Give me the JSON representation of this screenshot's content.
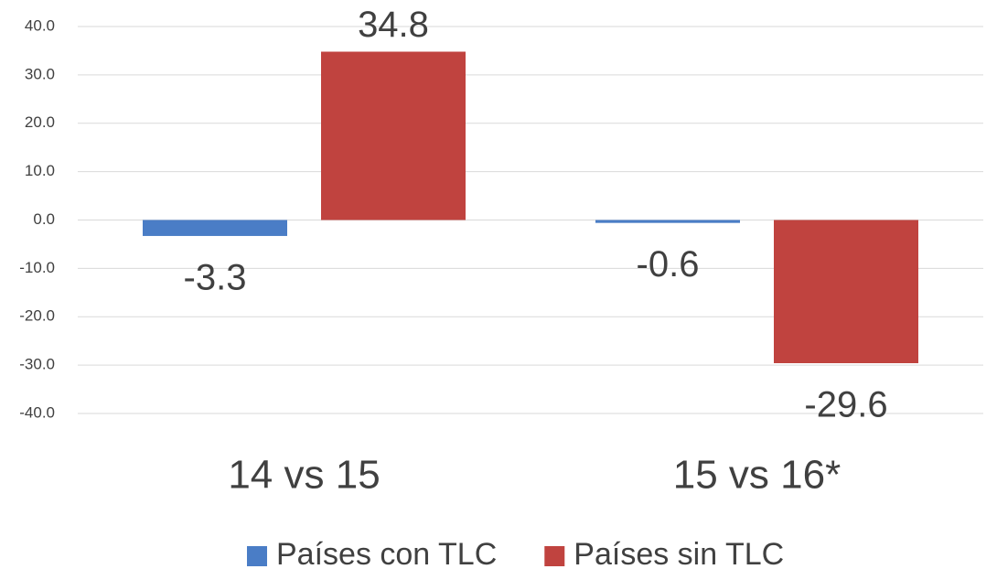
{
  "chart_data": {
    "type": "bar",
    "categories": [
      "14 vs 15",
      "15 vs 16*"
    ],
    "series": [
      {
        "name": "Países con TLC",
        "color": "#4a7dc6",
        "values": [
          -3.3,
          -0.6
        ]
      },
      {
        "name": "Países sin TLC",
        "color": "#c0433f",
        "values": [
          34.8,
          -29.6
        ]
      }
    ],
    "ylim": [
      -40,
      40
    ],
    "yticks": [
      {
        "value": -40,
        "label": "-40.0"
      },
      {
        "value": -30,
        "label": "-30.0"
      },
      {
        "value": -20,
        "label": "-20.0"
      },
      {
        "value": -10,
        "label": "-10.0"
      },
      {
        "value": 0,
        "label": "0.0"
      },
      {
        "value": 10,
        "label": "10.0"
      },
      {
        "value": 20,
        "label": "20.0"
      },
      {
        "value": 30,
        "label": "30.0"
      },
      {
        "value": 40,
        "label": "40.0"
      }
    ],
    "grid": true,
    "legend": "bottom"
  }
}
